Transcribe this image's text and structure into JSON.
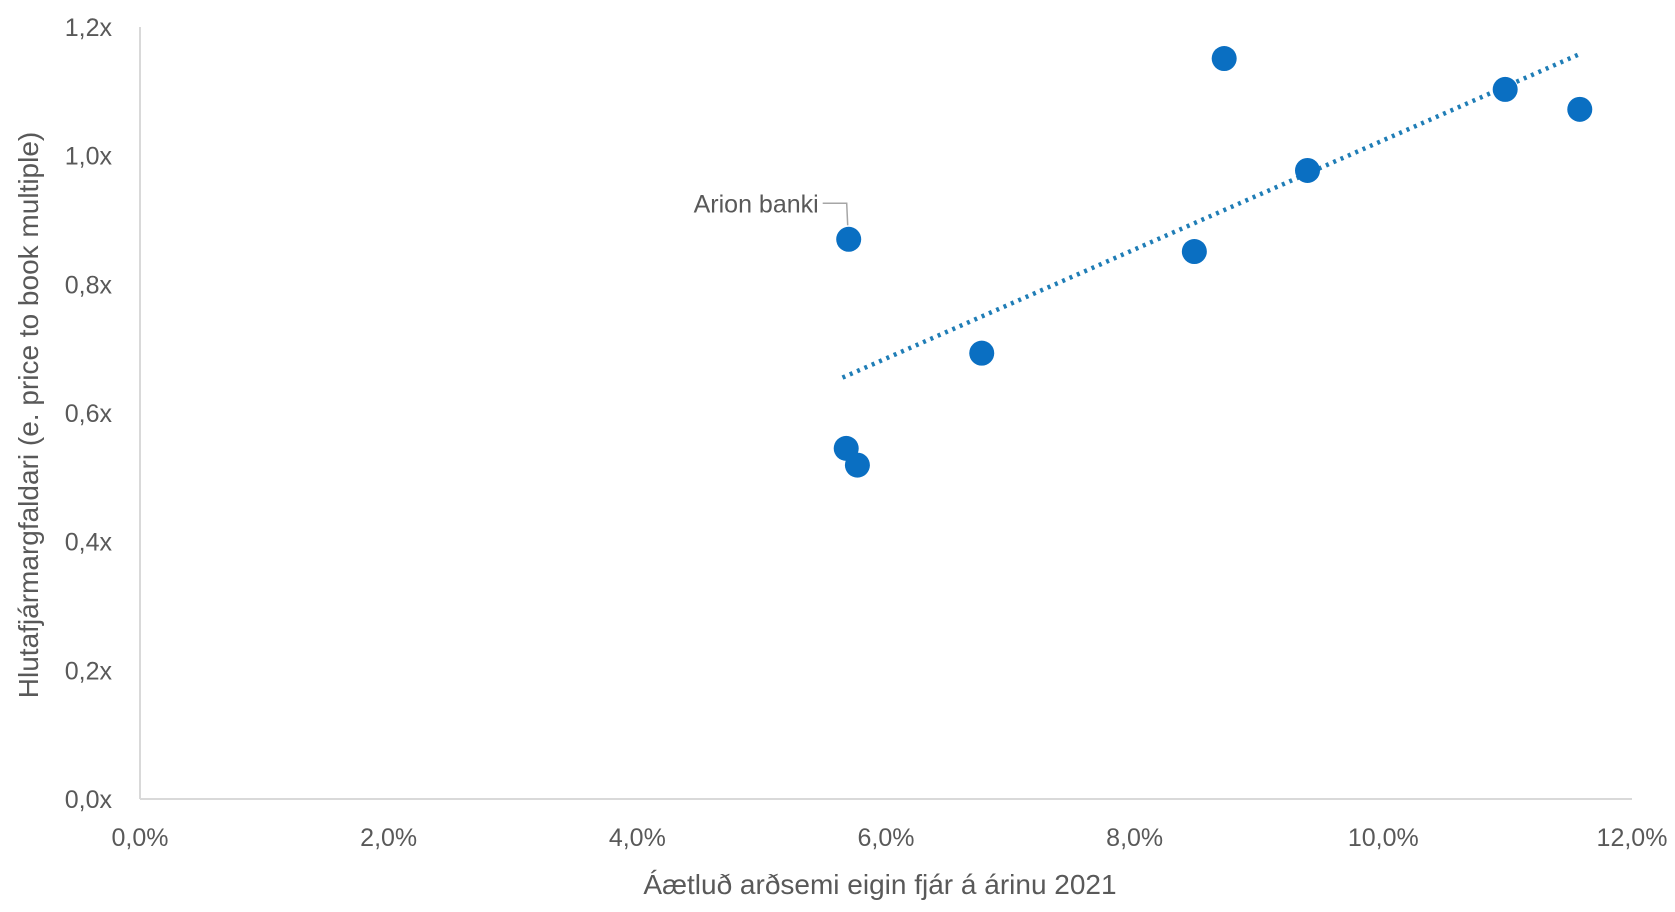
{
  "colors": {
    "point": "#0a6fc2",
    "trendline": "#1f7db6",
    "axis": "#d9d9d9",
    "text": "#595959",
    "leader": "#a6a6a6"
  },
  "chart_data": {
    "type": "scatter",
    "title": "",
    "xlabel": "Áætluð arðsemi eigin fjár á árinu 2021",
    "ylabel": "Hlutafjármargfaldari (e. price to book multiple)",
    "xlim": [
      0.0,
      12.0
    ],
    "ylim": [
      0.0,
      1.2
    ],
    "x_ticks": [
      0,
      2,
      4,
      6,
      8,
      10,
      12
    ],
    "x_tick_labels": [
      "0,0%",
      "2,0%",
      "4,0%",
      "6,0%",
      "8,0%",
      "10,0%",
      "12,0%"
    ],
    "y_ticks": [
      0.0,
      0.2,
      0.4,
      0.6,
      0.8,
      1.0,
      1.2
    ],
    "y_tick_labels": [
      "0,0x",
      "0,2x",
      "0,4x",
      "0,6x",
      "0,8x",
      "1,0x",
      "1,2x"
    ],
    "grid": false,
    "legend": "none",
    "points": [
      {
        "x": 5.7,
        "y": 0.87,
        "label": "Arion banki"
      },
      {
        "x": 5.68,
        "y": 0.545
      },
      {
        "x": 5.77,
        "y": 0.519
      },
      {
        "x": 6.77,
        "y": 0.693
      },
      {
        "x": 8.48,
        "y": 0.851
      },
      {
        "x": 8.72,
        "y": 1.151
      },
      {
        "x": 9.39,
        "y": 0.977
      },
      {
        "x": 10.98,
        "y": 1.103
      },
      {
        "x": 11.58,
        "y": 1.072
      }
    ],
    "trendline": {
      "style": "dotted",
      "from": {
        "x": 5.65,
        "y": 0.655
      },
      "to": {
        "x": 11.58,
        "y": 1.158
      }
    }
  }
}
